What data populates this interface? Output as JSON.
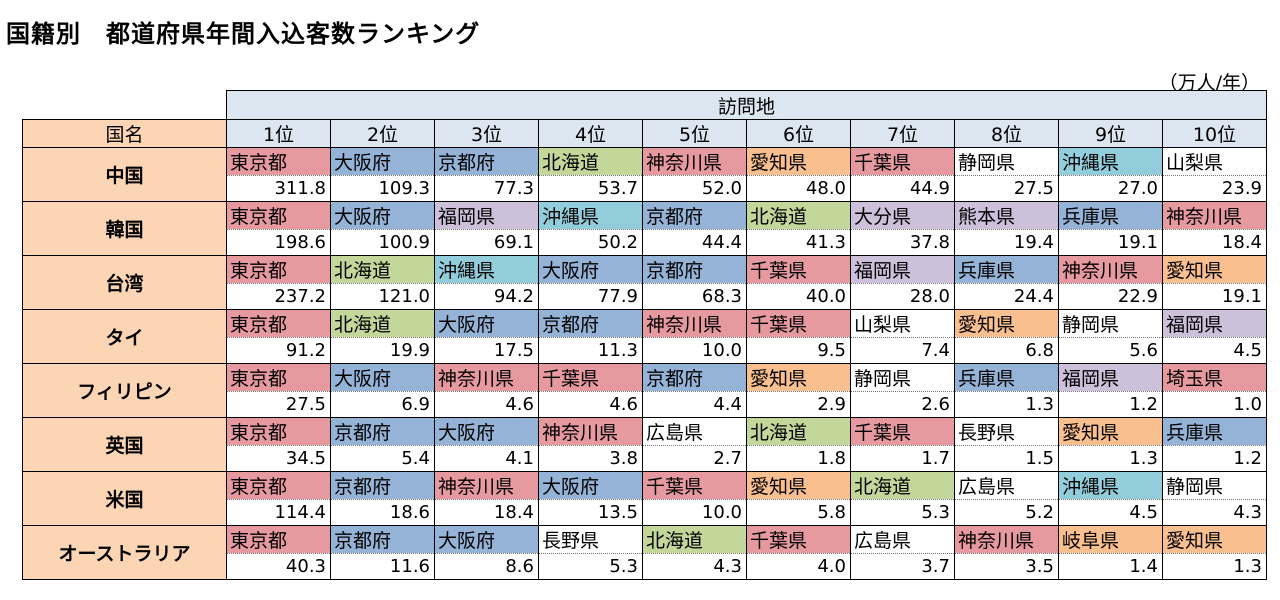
{
  "title": "国籍別　都道府県年間入込客数ランキング",
  "unit": "（万人/年）",
  "header": {
    "group_label": "訪問地",
    "name_label": "国名",
    "ranks": [
      "1位",
      "2位",
      "3位",
      "4位",
      "5位",
      "6位",
      "7位",
      "8位",
      "9位",
      "10位"
    ]
  },
  "colors": {
    "東京都": "#e6999f",
    "大阪府": "#95b3d7",
    "京都府": "#95b3d7",
    "兵庫県": "#95b3d7",
    "北海道": "#c4d79b",
    "沖縄県": "#92cddc",
    "神奈川県": "#e6999f",
    "千葉県": "#e6999f",
    "埼玉県": "#e6999f",
    "愛知県": "#fabf8f",
    "岐阜県": "#fabf8f",
    "福岡県": "#ccc0da",
    "熊本県": "#ccc0da",
    "大分県": "#ccc0da",
    "静岡県": "#ffffff",
    "山梨県": "#ffffff",
    "長野県": "#ffffff",
    "広島県": "#ffffff"
  },
  "rows": [
    {
      "country": "中国",
      "entries": [
        {
          "pref": "東京都",
          "value": "311.8"
        },
        {
          "pref": "大阪府",
          "value": "109.3"
        },
        {
          "pref": "京都府",
          "value": "77.3"
        },
        {
          "pref": "北海道",
          "value": "53.7"
        },
        {
          "pref": "神奈川県",
          "value": "52.0"
        },
        {
          "pref": "愛知県",
          "value": "48.0"
        },
        {
          "pref": "千葉県",
          "value": "44.9"
        },
        {
          "pref": "静岡県",
          "value": "27.5"
        },
        {
          "pref": "沖縄県",
          "value": "27.0"
        },
        {
          "pref": "山梨県",
          "value": "23.9"
        }
      ]
    },
    {
      "country": "韓国",
      "entries": [
        {
          "pref": "東京都",
          "value": "198.6"
        },
        {
          "pref": "大阪府",
          "value": "100.9"
        },
        {
          "pref": "福岡県",
          "value": "69.1"
        },
        {
          "pref": "沖縄県",
          "value": "50.2"
        },
        {
          "pref": "京都府",
          "value": "44.4"
        },
        {
          "pref": "北海道",
          "value": "41.3"
        },
        {
          "pref": "大分県",
          "value": "37.8"
        },
        {
          "pref": "熊本県",
          "value": "19.4"
        },
        {
          "pref": "兵庫県",
          "value": "19.1"
        },
        {
          "pref": "神奈川県",
          "value": "18.4"
        }
      ]
    },
    {
      "country": "台湾",
      "entries": [
        {
          "pref": "東京都",
          "value": "237.2"
        },
        {
          "pref": "北海道",
          "value": "121.0"
        },
        {
          "pref": "沖縄県",
          "value": "94.2"
        },
        {
          "pref": "大阪府",
          "value": "77.9"
        },
        {
          "pref": "京都府",
          "value": "68.3"
        },
        {
          "pref": "千葉県",
          "value": "40.0"
        },
        {
          "pref": "福岡県",
          "value": "28.0"
        },
        {
          "pref": "兵庫県",
          "value": "24.4"
        },
        {
          "pref": "神奈川県",
          "value": "22.9"
        },
        {
          "pref": "愛知県",
          "value": "19.1"
        }
      ]
    },
    {
      "country": "タイ",
      "entries": [
        {
          "pref": "東京都",
          "value": "91.2"
        },
        {
          "pref": "北海道",
          "value": "19.9"
        },
        {
          "pref": "大阪府",
          "value": "17.5"
        },
        {
          "pref": "京都府",
          "value": "11.3"
        },
        {
          "pref": "神奈川県",
          "value": "10.0"
        },
        {
          "pref": "千葉県",
          "value": "9.5"
        },
        {
          "pref": "山梨県",
          "value": "7.4"
        },
        {
          "pref": "愛知県",
          "value": "6.8"
        },
        {
          "pref": "静岡県",
          "value": "5.6"
        },
        {
          "pref": "福岡県",
          "value": "4.5"
        }
      ]
    },
    {
      "country": "フィリピン",
      "entries": [
        {
          "pref": "東京都",
          "value": "27.5"
        },
        {
          "pref": "大阪府",
          "value": "6.9"
        },
        {
          "pref": "神奈川県",
          "value": "4.6"
        },
        {
          "pref": "千葉県",
          "value": "4.6"
        },
        {
          "pref": "京都府",
          "value": "4.4"
        },
        {
          "pref": "愛知県",
          "value": "2.9"
        },
        {
          "pref": "静岡県",
          "value": "2.6"
        },
        {
          "pref": "兵庫県",
          "value": "1.3"
        },
        {
          "pref": "福岡県",
          "value": "1.2"
        },
        {
          "pref": "埼玉県",
          "value": "1.0"
        }
      ]
    },
    {
      "country": "英国",
      "entries": [
        {
          "pref": "東京都",
          "value": "34.5"
        },
        {
          "pref": "京都府",
          "value": "5.4"
        },
        {
          "pref": "大阪府",
          "value": "4.1"
        },
        {
          "pref": "神奈川県",
          "value": "3.8"
        },
        {
          "pref": "広島県",
          "value": "2.7"
        },
        {
          "pref": "北海道",
          "value": "1.8"
        },
        {
          "pref": "千葉県",
          "value": "1.7"
        },
        {
          "pref": "長野県",
          "value": "1.5"
        },
        {
          "pref": "愛知県",
          "value": "1.3"
        },
        {
          "pref": "兵庫県",
          "value": "1.2"
        }
      ]
    },
    {
      "country": "米国",
      "entries": [
        {
          "pref": "東京都",
          "value": "114.4"
        },
        {
          "pref": "京都府",
          "value": "18.6"
        },
        {
          "pref": "神奈川県",
          "value": "18.4"
        },
        {
          "pref": "大阪府",
          "value": "13.5"
        },
        {
          "pref": "千葉県",
          "value": "10.0"
        },
        {
          "pref": "愛知県",
          "value": "5.8"
        },
        {
          "pref": "北海道",
          "value": "5.3"
        },
        {
          "pref": "広島県",
          "value": "5.2"
        },
        {
          "pref": "沖縄県",
          "value": "4.5"
        },
        {
          "pref": "静岡県",
          "value": "4.3"
        }
      ]
    },
    {
      "country": "オーストラリア",
      "entries": [
        {
          "pref": "東京都",
          "value": "40.3"
        },
        {
          "pref": "京都府",
          "value": "11.6"
        },
        {
          "pref": "大阪府",
          "value": "8.6"
        },
        {
          "pref": "長野県",
          "value": "5.3"
        },
        {
          "pref": "北海道",
          "value": "4.3"
        },
        {
          "pref": "千葉県",
          "value": "4.0"
        },
        {
          "pref": "広島県",
          "value": "3.7"
        },
        {
          "pref": "神奈川県",
          "value": "3.5"
        },
        {
          "pref": "岐阜県",
          "value": "1.4"
        },
        {
          "pref": "愛知県",
          "value": "1.3"
        }
      ]
    }
  ]
}
